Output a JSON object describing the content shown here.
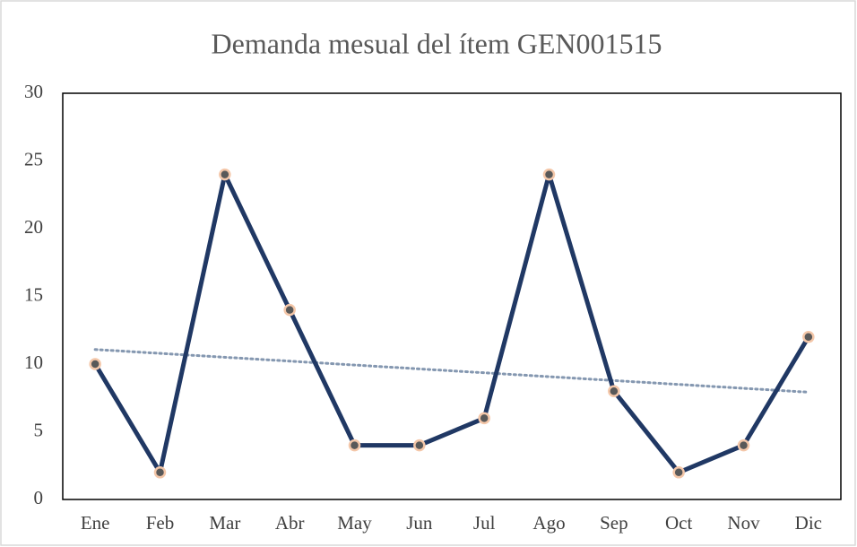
{
  "chart_data": {
    "type": "line",
    "title": "Demanda mesual del ítem GEN001515",
    "categories": [
      "Ene",
      "Feb",
      "Mar",
      "Abr",
      "May",
      "Jun",
      "Jul",
      "Ago",
      "Sep",
      "Oct",
      "Nov",
      "Dic"
    ],
    "series": [
      {
        "color": "#203864",
        "marker_color": "#595959",
        "marker_edge": "#f4c7a9",
        "values": [
          10,
          2,
          24,
          14,
          4,
          4,
          6,
          24,
          8,
          2,
          4,
          12
        ]
      }
    ],
    "trendline": {
      "type": "linear",
      "color": "#8497b0"
    },
    "ylim": [
      0,
      30
    ],
    "yticks": [
      0,
      5,
      10,
      15,
      20,
      25,
      30
    ],
    "grid": false
  }
}
